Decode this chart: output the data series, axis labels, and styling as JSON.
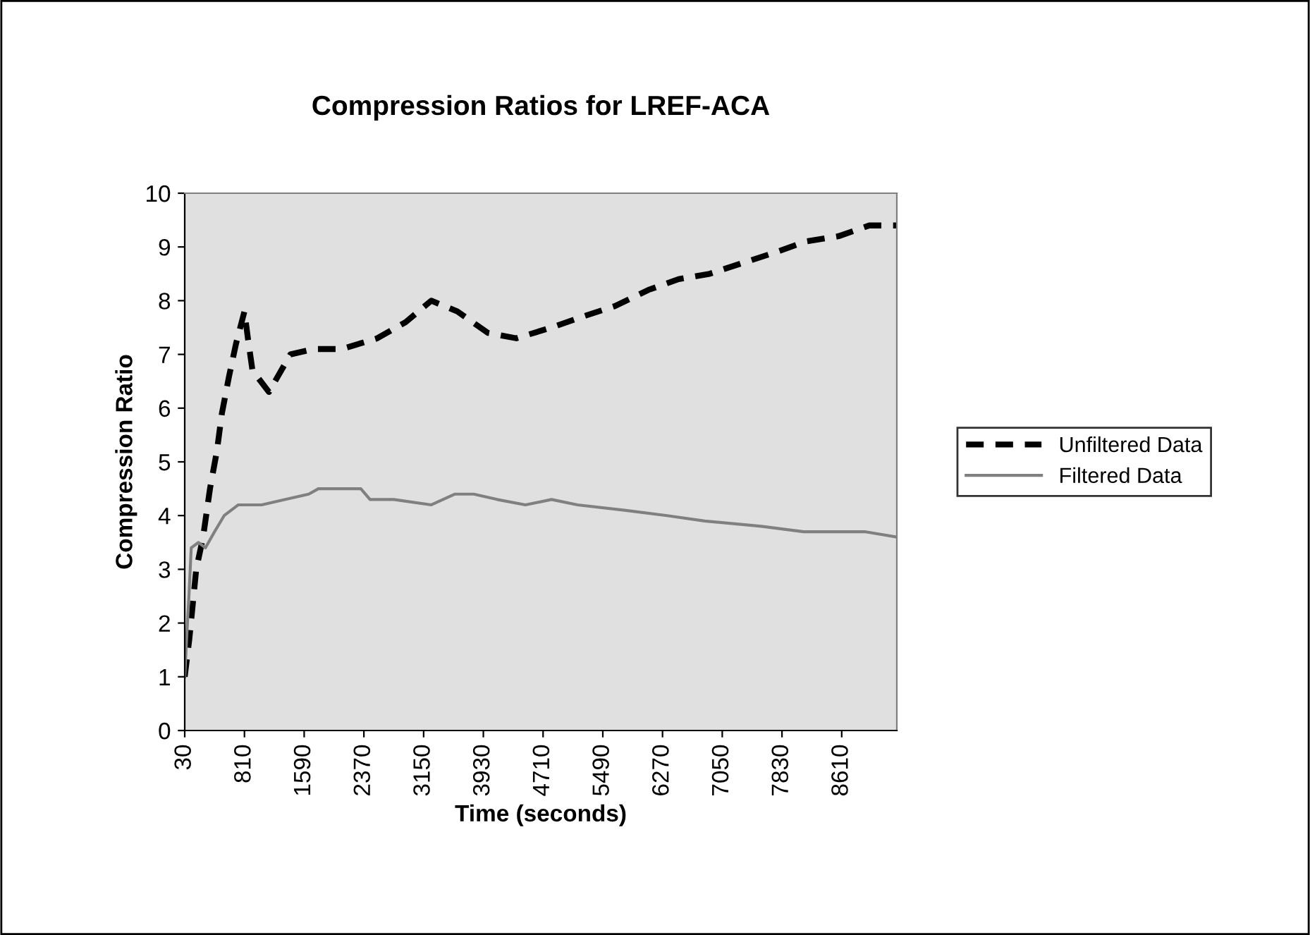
{
  "chart_data": {
    "type": "line",
    "title": "Compression Ratios for LREF-ACA",
    "xlabel": "Time (seconds)",
    "ylabel": "Compression Ratio",
    "xlim": [
      30,
      9330
    ],
    "xticks": [
      30,
      810,
      1590,
      2370,
      3150,
      3930,
      4710,
      5490,
      6270,
      7050,
      7830,
      8610
    ],
    "ylim": [
      0,
      10
    ],
    "yticks": [
      0,
      1,
      2,
      3,
      4,
      5,
      6,
      7,
      8,
      9,
      10
    ],
    "grid": false,
    "legend": "right",
    "marker": "none",
    "series": [
      {
        "name": "Unfiltered Data",
        "color": "#000000",
        "line_style": "dashed",
        "x": [
          30,
          90,
          180,
          270,
          360,
          450,
          515,
          610,
          700,
          810,
          855,
          915,
          1130,
          1410,
          1715,
          2080,
          2545,
          2915,
          3250,
          3590,
          3990,
          4360,
          4820,
          5220,
          5650,
          6085,
          6480,
          6885,
          7315,
          7745,
          8140,
          8570,
          8970,
          9330
        ],
        "values": [
          1.0,
          1.7,
          3.0,
          3.6,
          4.5,
          5.2,
          5.9,
          6.6,
          7.2,
          7.8,
          7.3,
          6.7,
          6.3,
          7.0,
          7.1,
          7.1,
          7.3,
          7.6,
          8.0,
          7.8,
          7.4,
          7.3,
          7.5,
          7.7,
          7.9,
          8.2,
          8.4,
          8.5,
          8.7,
          8.9,
          9.1,
          9.2,
          9.4,
          9.4
        ]
      },
      {
        "name": "Filtered Data",
        "color": "#808080",
        "line_style": "solid",
        "x": [
          30,
          65,
          85,
          115,
          210,
          300,
          420,
          545,
          730,
          1035,
          1345,
          1650,
          1775,
          2145,
          2330,
          2450,
          2760,
          3250,
          3560,
          3805,
          4110,
          4480,
          4820,
          5160,
          5775,
          6330,
          6820,
          7560,
          8115,
          8910,
          9330
        ],
        "values": [
          1.0,
          2.0,
          2.5,
          3.4,
          3.5,
          3.4,
          3.7,
          4.0,
          4.2,
          4.2,
          4.3,
          4.4,
          4.5,
          4.5,
          4.5,
          4.3,
          4.3,
          4.2,
          4.4,
          4.4,
          4.3,
          4.2,
          4.3,
          4.2,
          4.1,
          4.0,
          3.9,
          3.8,
          3.7,
          3.7,
          3.6
        ]
      }
    ]
  }
}
